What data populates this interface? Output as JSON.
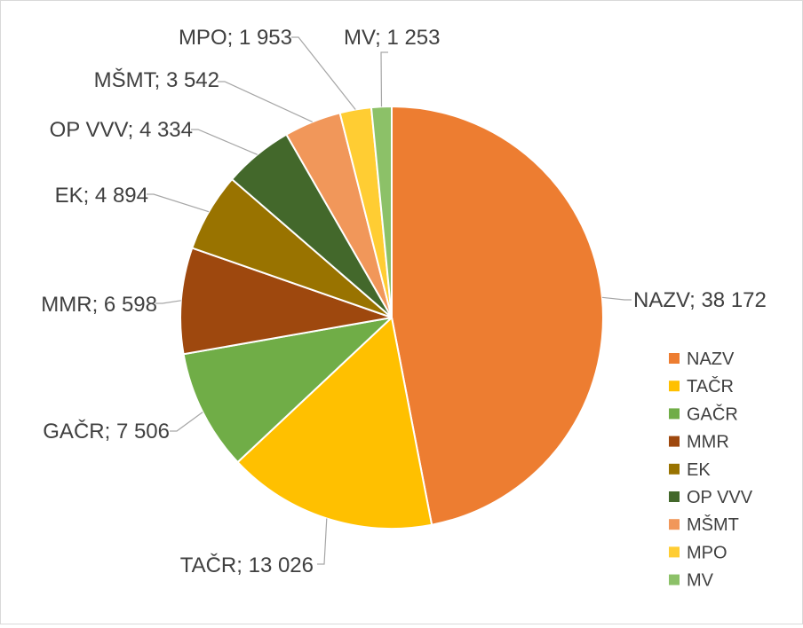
{
  "chart_data": {
    "type": "pie",
    "title": "",
    "legend_position": "right",
    "data_label_separator": "; ",
    "slices": [
      {
        "label": "NAZV",
        "value": 38172,
        "value_text": "38 172",
        "color": "#ED7D31"
      },
      {
        "label": "TAČR",
        "value": 13026,
        "value_text": "13 026",
        "color": "#FFC000"
      },
      {
        "label": "GAČR",
        "value": 7506,
        "value_text": "7 506",
        "color": "#70AD47"
      },
      {
        "label": "MMR",
        "value": 6598,
        "value_text": "6 598",
        "color": "#9E480E"
      },
      {
        "label": "EK",
        "value": 4894,
        "value_text": "4 894",
        "color": "#997300"
      },
      {
        "label": "OP VVV",
        "value": 4334,
        "value_text": "4 334",
        "color": "#43682B"
      },
      {
        "label": "MŠMT",
        "value": 3542,
        "value_text": "3 542",
        "color": "#F1975A"
      },
      {
        "label": "MPO",
        "value": 1953,
        "value_text": "1 953",
        "color": "#FFCD33"
      },
      {
        "label": "MV",
        "value": 1253,
        "value_text": "1 253",
        "color": "#8CC168"
      }
    ]
  }
}
